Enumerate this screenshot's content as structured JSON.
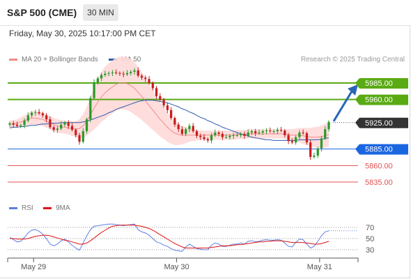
{
  "header": {
    "title": "S&P 500 (CME)",
    "timeframe": "30 MIN"
  },
  "datetime": "Friday, May 30, 2025 10:17:00 PM CET",
  "legend": {
    "ma20": {
      "label": "MA 20 + Bollinger Bands",
      "color": "#f08a8a"
    },
    "ma50": {
      "label": "MA 50",
      "color": "#2e5aa8"
    },
    "copyright": "Research © 2025 Trading Central"
  },
  "rsi_legend": {
    "rsi": {
      "label": "RSI",
      "color": "#5b7fe0"
    },
    "ma9": {
      "label": "9MA",
      "color": "#e01010"
    }
  },
  "colors": {
    "resistance": "#5aaa14",
    "current": "#333333",
    "pivot": "#1a66e0",
    "support": "#e05050",
    "bull": "#2a9a2a",
    "bear": "#c81e1e",
    "band": "#ffd9d9",
    "arrow": "#2a66b8"
  },
  "chart_data": [
    {
      "type": "candlestick",
      "title": "S&P 500 (CME)",
      "timeframe": "30 MIN",
      "x_ticks": [
        "May 29",
        "May 30",
        "May 31"
      ],
      "ylim": [
        5815,
        6005
      ],
      "levels": [
        {
          "value": 5985.0,
          "label": "5985.00",
          "kind": "resistance"
        },
        {
          "value": 5960.0,
          "label": "5960.00",
          "kind": "resistance"
        },
        {
          "value": 5925.0,
          "label": "5925.00",
          "kind": "current"
        },
        {
          "value": 5885.0,
          "label": "5885.00",
          "kind": "pivot"
        },
        {
          "value": 5860.0,
          "label": "5860.00",
          "kind": "support"
        },
        {
          "value": 5835.0,
          "label": "5835.00",
          "kind": "support"
        }
      ],
      "close": [
        5924,
        5922,
        5920,
        5921,
        5928,
        5936,
        5940,
        5941,
        5939,
        5936,
        5930,
        5918,
        5914,
        5916,
        5922,
        5925,
        5920,
        5914,
        5906,
        5896,
        5912,
        5930,
        5962,
        5986,
        5992,
        5997,
        5999,
        6000,
        6001,
        6000,
        5999,
        5998,
        6000,
        6002,
        6004,
        5996,
        5993,
        5991,
        5985,
        5977,
        5965,
        5960,
        5951,
        5944,
        5932,
        5922,
        5915,
        5908,
        5915,
        5920,
        5912,
        5905,
        5903,
        5900,
        5898,
        5906,
        5910,
        5908,
        5903,
        5903,
        5905,
        5906,
        5906,
        5908,
        5905,
        5910,
        5912,
        5909,
        5910,
        5912,
        5913,
        5912,
        5912,
        5914,
        5913,
        5906,
        5897,
        5895,
        5903,
        5910,
        5909,
        5895,
        5873,
        5875,
        5886,
        5901,
        5915,
        5926
      ],
      "ma20": [
        5922,
        5923,
        5924,
        5926,
        5928,
        5930,
        5932,
        5932,
        5931,
        5930,
        5927,
        5925,
        5922,
        5920,
        5919,
        5918,
        5917,
        5916,
        5915,
        5916,
        5920,
        5927,
        5937,
        5947,
        5956,
        5964,
        5970,
        5975,
        5979,
        5983,
        5985,
        5985,
        5984,
        5981,
        5977,
        5971,
        5965,
        5958,
        5951,
        5944,
        5937,
        5930,
        5924,
        5918,
        5913,
        5909,
        5907,
        5906,
        5906,
        5906,
        5906,
        5906,
        5906,
        5906,
        5906,
        5906,
        5906,
        5906,
        5906,
        5906,
        5906,
        5906,
        5907,
        5907,
        5907,
        5908,
        5908,
        5908,
        5908,
        5908,
        5908,
        5908,
        5908,
        5908,
        5908,
        5907,
        5907,
        5906,
        5906,
        5906,
        5905,
        5904,
        5903,
        5903,
        5903,
        5904,
        5905,
        5907
      ],
      "ma50": [
        5917,
        5918,
        5918,
        5919,
        5919,
        5920,
        5921,
        5921,
        5922,
        5923,
        5923,
        5924,
        5924,
        5924,
        5925,
        5925,
        5925,
        5925,
        5925,
        5925,
        5926,
        5927,
        5929,
        5931,
        5933,
        5935,
        5937,
        5940,
        5942,
        5945,
        5947,
        5949,
        5951,
        5953,
        5955,
        5957,
        5958,
        5959,
        5959,
        5959,
        5958,
        5957,
        5956,
        5955,
        5953,
        5951,
        5949,
        5946,
        5944,
        5941,
        5939,
        5936,
        5933,
        5931,
        5928,
        5926,
        5923,
        5921,
        5918,
        5916,
        5914,
        5912,
        5910,
        5908,
        5906,
        5905,
        5903,
        5902,
        5901,
        5900,
        5899,
        5899,
        5898,
        5898,
        5898,
        5898,
        5898,
        5898,
        5898,
        5899,
        5899,
        5899,
        5899,
        5899,
        5899,
        5900,
        5901,
        5902
      ],
      "band_half": [
        6,
        6,
        6,
        7,
        8,
        9,
        10,
        10,
        10,
        10,
        10,
        10,
        10,
        10,
        10,
        10,
        10,
        11,
        12,
        14,
        18,
        22,
        27,
        32,
        36,
        38,
        40,
        40,
        40,
        40,
        40,
        40,
        40,
        40,
        40,
        38,
        36,
        34,
        32,
        30,
        28,
        26,
        24,
        22,
        20,
        18,
        16,
        14,
        12,
        10,
        9,
        8,
        7,
        7,
        7,
        7,
        7,
        7,
        7,
        7,
        7,
        7,
        7,
        7,
        7,
        7,
        7,
        7,
        7,
        7,
        7,
        7,
        7,
        7,
        7,
        7,
        8,
        9,
        10,
        11,
        12,
        13,
        14,
        15,
        16,
        17,
        18,
        18
      ]
    },
    {
      "type": "line",
      "title": "RSI",
      "ylim": [
        20,
        85
      ],
      "y_ticks": [
        30,
        50,
        70
      ],
      "series": [
        {
          "name": "RSI",
          "values": [
            52,
            48,
            44,
            45,
            52,
            60,
            65,
            66,
            63,
            58,
            50,
            40,
            37,
            40,
            46,
            49,
            44,
            38,
            33,
            29,
            42,
            55,
            66,
            72,
            73,
            74,
            75,
            76,
            76,
            75,
            74,
            73,
            74,
            75,
            76,
            66,
            62,
            60,
            56,
            50,
            44,
            42,
            38,
            36,
            32,
            29,
            28,
            27,
            35,
            40,
            36,
            32,
            31,
            30,
            30,
            38,
            42,
            40,
            36,
            36,
            38,
            40,
            40,
            42,
            40,
            45,
            46,
            44,
            45,
            47,
            48,
            47,
            47,
            48,
            47,
            42,
            36,
            35,
            43,
            49,
            48,
            40,
            33,
            36,
            45,
            55,
            62,
            64
          ]
        },
        {
          "name": "9MA",
          "values": [
            50,
            50,
            49,
            49,
            49,
            50,
            52,
            54,
            55,
            56,
            56,
            55,
            53,
            51,
            49,
            47,
            46,
            44,
            42,
            40,
            40,
            42,
            46,
            51,
            56,
            61,
            65,
            69,
            72,
            73,
            74,
            74,
            74,
            74,
            74,
            73,
            72,
            70,
            68,
            65,
            61,
            57,
            53,
            49,
            45,
            41,
            38,
            35,
            33,
            33,
            33,
            33,
            33,
            33,
            33,
            34,
            35,
            36,
            37,
            37,
            37,
            38,
            39,
            39,
            40,
            41,
            42,
            43,
            44,
            44,
            45,
            45,
            46,
            46,
            46,
            45,
            44,
            43,
            43,
            43,
            43,
            42,
            41,
            40,
            40,
            41,
            43,
            45
          ]
        }
      ],
      "x_ticks": [
        "May 29",
        "May 30",
        "May 31"
      ]
    }
  ]
}
